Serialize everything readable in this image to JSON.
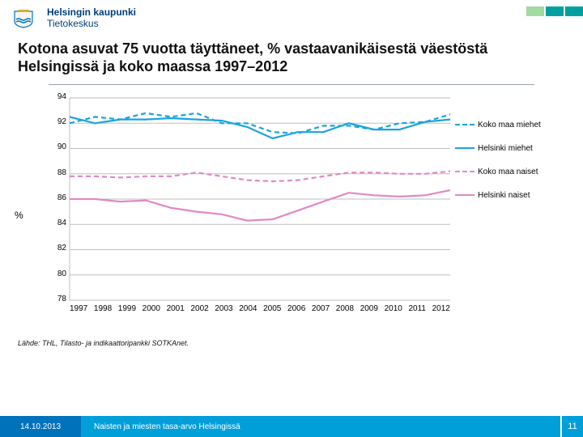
{
  "brand": {
    "line1": "Helsingin kaupunki",
    "line2": "Tietokeskus"
  },
  "deco_colors": [
    "#a4d9a0",
    "#00a0a0",
    "#00a0a0"
  ],
  "title": "Kotona asuvat 75 vuotta täyttäneet, % vastaavanikäisestä väestöstä Helsingissä ja koko maassa 1997–2012",
  "chart": {
    "type": "line",
    "x": [
      1997,
      1998,
      1999,
      2000,
      2001,
      2002,
      2003,
      2004,
      2005,
      2006,
      2007,
      2008,
      2009,
      2010,
      2011,
      2012
    ],
    "ylim": [
      78,
      94
    ],
    "ytick_step": 2,
    "background_color": "#ffffff",
    "grid_color": "#bfbfbf",
    "label_fontsize": 10,
    "yaxis_title": "%",
    "series": [
      {
        "name": "Koko maa miehet",
        "color": "#1aa3e0",
        "dash": "6,4",
        "width": 2.2,
        "data": [
          92.0,
          92.5,
          92.3,
          92.8,
          92.5,
          92.8,
          92.0,
          92.0,
          91.3,
          91.2,
          91.8,
          91.8,
          91.5,
          92.0,
          92.1,
          92.7
        ]
      },
      {
        "name": "Helsinki miehet",
        "color": "#1aa3e0",
        "dash": "none",
        "width": 2.2,
        "data": [
          92.5,
          92.0,
          92.3,
          92.3,
          92.4,
          92.3,
          92.2,
          91.7,
          90.8,
          91.3,
          91.3,
          92.0,
          91.5,
          91.5,
          92.1,
          92.3
        ]
      },
      {
        "name": "Koko maa naiset",
        "color": "#e089c7",
        "dash": "6,4",
        "width": 2.2,
        "data": [
          87.8,
          87.8,
          87.7,
          87.8,
          87.8,
          88.1,
          87.8,
          87.5,
          87.4,
          87.5,
          87.8,
          88.1,
          88.1,
          88.0,
          88.0,
          88.2
        ]
      },
      {
        "name": "Helsinki naiset",
        "color": "#e089c7",
        "dash": "none",
        "width": 2.2,
        "data": [
          86.0,
          86.0,
          85.8,
          85.9,
          85.3,
          85.0,
          84.8,
          84.3,
          84.4,
          85.1,
          85.8,
          86.5,
          86.3,
          86.2,
          86.3,
          86.7
        ]
      }
    ]
  },
  "source": "Lähde: THL, Tilasto- ja indikaattoripankki SOTKAnet.",
  "footer": {
    "date": "14.10.2013",
    "caption": "Naisten ja miesten tasa-arvo Helsingissä",
    "page": "11"
  },
  "logo_colors": {
    "shield": "#0074b7",
    "crown": "#d4af37",
    "water": "#0074b7"
  }
}
